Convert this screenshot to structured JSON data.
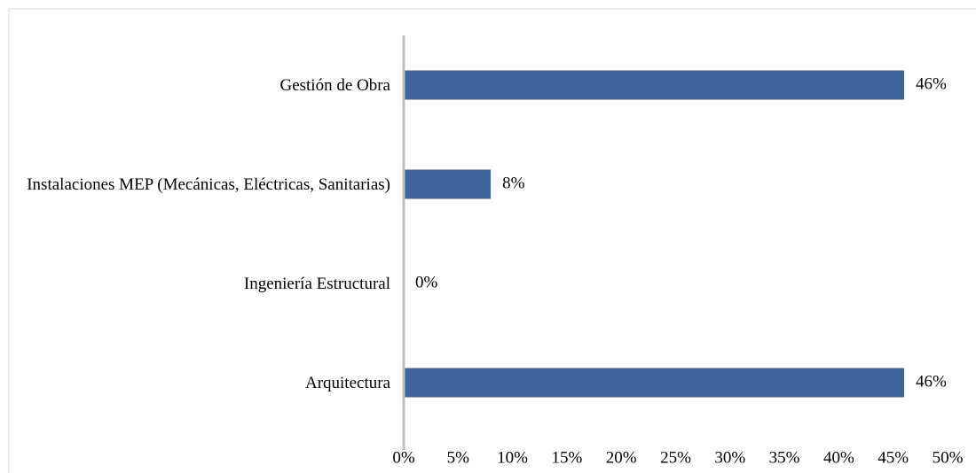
{
  "chart_data": {
    "type": "barh",
    "categories": [
      "Gestión de Obra",
      "Instalaciones MEP (Mecánicas, Eléctricas, Sanitarias)",
      "Ingeniería Estructural",
      "Arquitectura"
    ],
    "values": [
      46,
      8,
      0,
      46
    ],
    "value_labels": [
      "46%",
      "8%",
      "0%",
      "46%"
    ],
    "color": "#3d6599",
    "xlim": [
      0,
      50
    ],
    "xticks": [
      {
        "value": 0,
        "label": "0%"
      },
      {
        "value": 5,
        "label": "5%"
      },
      {
        "value": 10,
        "label": "10%"
      },
      {
        "value": 15,
        "label": "15%"
      },
      {
        "value": 20,
        "label": "20%"
      },
      {
        "value": 25,
        "label": "25%"
      },
      {
        "value": 30,
        "label": "30%"
      },
      {
        "value": 35,
        "label": "35%"
      },
      {
        "value": 40,
        "label": "40%"
      },
      {
        "value": 45,
        "label": "45%"
      },
      {
        "value": 50,
        "label": "50%"
      }
    ],
    "grid": false
  }
}
